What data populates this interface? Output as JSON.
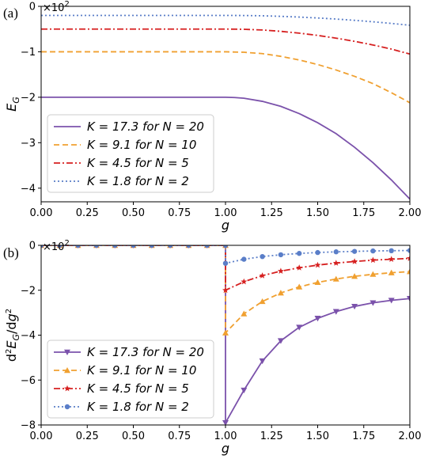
{
  "chart_data": [
    {
      "panel_label": "(a)",
      "type": "line",
      "xlabel": "g",
      "ylabel": "E_G",
      "multiplier": "×10^2",
      "xlim": [
        0.0,
        2.0
      ],
      "ylim": [
        -4.3,
        0.0
      ],
      "xticks": [
        "0.00",
        "0.25",
        "0.50",
        "0.75",
        "1.00",
        "1.25",
        "1.50",
        "1.75",
        "2.00"
      ],
      "yticks": [
        "0",
        "−1",
        "−2",
        "−3",
        "−4"
      ],
      "legend_position": "lower-left",
      "series": [
        {
          "name": "K = 17.3 for N = 20",
          "color": "#7b52ab",
          "dash": "solid",
          "x": [
            0.0,
            0.5,
            1.0,
            1.05,
            1.1,
            1.2,
            1.3,
            1.4,
            1.5,
            1.6,
            1.7,
            1.8,
            1.9,
            2.0
          ],
          "y": [
            -2.0,
            -2.0,
            -2.0,
            -2.006,
            -2.022,
            -2.09,
            -2.2,
            -2.36,
            -2.56,
            -2.8,
            -3.1,
            -3.44,
            -3.82,
            -4.24
          ]
        },
        {
          "name": "K = 9.1 for N = 10",
          "color": "#f0a030",
          "dash": "dashed",
          "x": [
            0.0,
            0.5,
            1.0,
            1.1,
            1.2,
            1.3,
            1.4,
            1.5,
            1.6,
            1.7,
            1.8,
            1.9,
            2.0
          ],
          "y": [
            -1.0,
            -1.0,
            -1.0,
            -1.01,
            -1.04,
            -1.1,
            -1.18,
            -1.28,
            -1.4,
            -1.54,
            -1.7,
            -1.9,
            -2.12
          ]
        },
        {
          "name": "K = 4.5 for N = 5",
          "color": "#d62020",
          "dash": "dashdot",
          "x": [
            0.0,
            0.5,
            1.0,
            1.1,
            1.2,
            1.3,
            1.4,
            1.5,
            1.6,
            1.7,
            1.8,
            1.9,
            2.0
          ],
          "y": [
            -0.5,
            -0.5,
            -0.5,
            -0.505,
            -0.52,
            -0.55,
            -0.59,
            -0.64,
            -0.7,
            -0.77,
            -0.85,
            -0.94,
            -1.05
          ]
        },
        {
          "name": "K = 1.8 for N = 2",
          "color": "#5a7ec8",
          "dash": "dotted",
          "x": [
            0.0,
            0.5,
            1.0,
            1.1,
            1.2,
            1.3,
            1.4,
            1.5,
            1.6,
            1.7,
            1.8,
            1.9,
            2.0
          ],
          "y": [
            -0.2,
            -0.2,
            -0.2,
            -0.202,
            -0.208,
            -0.22,
            -0.236,
            -0.256,
            -0.28,
            -0.308,
            -0.34,
            -0.376,
            -0.416
          ]
        }
      ]
    },
    {
      "panel_label": "(b)",
      "type": "line",
      "xlabel": "g",
      "ylabel": "d²E_G/dg²",
      "multiplier": "×10^2",
      "xlim": [
        0.0,
        2.0
      ],
      "ylim": [
        -8.0,
        0.0
      ],
      "xticks": [
        "0.00",
        "0.25",
        "0.50",
        "0.75",
        "1.00",
        "1.25",
        "1.50",
        "1.75",
        "2.00"
      ],
      "yticks": [
        "0",
        "−2",
        "−4",
        "−6",
        "−8"
      ],
      "legend_position": "lower-left",
      "series": [
        {
          "name": "K = 17.3 for N = 20",
          "color": "#7b52ab",
          "dash": "solid",
          "marker": "triangle-down",
          "x": [
            0.0,
            0.1,
            0.2,
            0.3,
            0.4,
            0.5,
            0.6,
            0.7,
            0.8,
            0.9,
            1.0,
            1.0,
            1.1,
            1.2,
            1.3,
            1.4,
            1.5,
            1.6,
            1.7,
            1.8,
            1.9,
            2.0
          ],
          "y": [
            0,
            0,
            0,
            0,
            0,
            0,
            0,
            0,
            0,
            0,
            0,
            -7.9,
            -6.45,
            -5.15,
            -4.25,
            -3.65,
            -3.25,
            -2.95,
            -2.72,
            -2.56,
            -2.45,
            -2.37
          ]
        },
        {
          "name": "K = 9.1 for N = 10",
          "color": "#f0a030",
          "dash": "dashed",
          "marker": "triangle-up",
          "x": [
            0.0,
            0.1,
            0.2,
            0.3,
            0.4,
            0.5,
            0.6,
            0.7,
            0.8,
            0.9,
            1.0,
            1.0,
            1.1,
            1.2,
            1.3,
            1.4,
            1.5,
            1.6,
            1.7,
            1.8,
            1.9,
            2.0
          ],
          "y": [
            0,
            0,
            0,
            0,
            0,
            0,
            0,
            0,
            0,
            0,
            0,
            -3.9,
            -3.05,
            -2.5,
            -2.12,
            -1.85,
            -1.65,
            -1.5,
            -1.38,
            -1.29,
            -1.22,
            -1.17
          ]
        },
        {
          "name": "K = 4.5 for N = 5",
          "color": "#d62020",
          "dash": "dashdot",
          "marker": "star",
          "x": [
            0.0,
            0.1,
            0.2,
            0.3,
            0.4,
            0.5,
            0.6,
            0.7,
            0.8,
            0.9,
            1.0,
            1.0,
            1.1,
            1.2,
            1.3,
            1.4,
            1.5,
            1.6,
            1.7,
            1.8,
            1.9,
            2.0
          ],
          "y": [
            0,
            0,
            0,
            0,
            0,
            0,
            0,
            0,
            0,
            0,
            0,
            -2.0,
            -1.62,
            -1.35,
            -1.15,
            -1.0,
            -0.88,
            -0.79,
            -0.72,
            -0.66,
            -0.62,
            -0.58
          ]
        },
        {
          "name": "K = 1.8 for N = 2",
          "color": "#5a7ec8",
          "dash": "dotted",
          "marker": "circle",
          "x": [
            0.0,
            0.1,
            0.2,
            0.3,
            0.4,
            0.5,
            0.6,
            0.7,
            0.8,
            0.9,
            1.0,
            1.0,
            1.1,
            1.2,
            1.3,
            1.4,
            1.5,
            1.6,
            1.7,
            1.8,
            1.9,
            2.0
          ],
          "y": [
            0,
            0,
            0,
            0,
            0,
            0,
            0,
            0,
            0,
            0,
            0,
            -0.8,
            -0.62,
            -0.5,
            -0.42,
            -0.36,
            -0.32,
            -0.29,
            -0.27,
            -0.25,
            -0.24,
            -0.23
          ]
        }
      ]
    }
  ]
}
